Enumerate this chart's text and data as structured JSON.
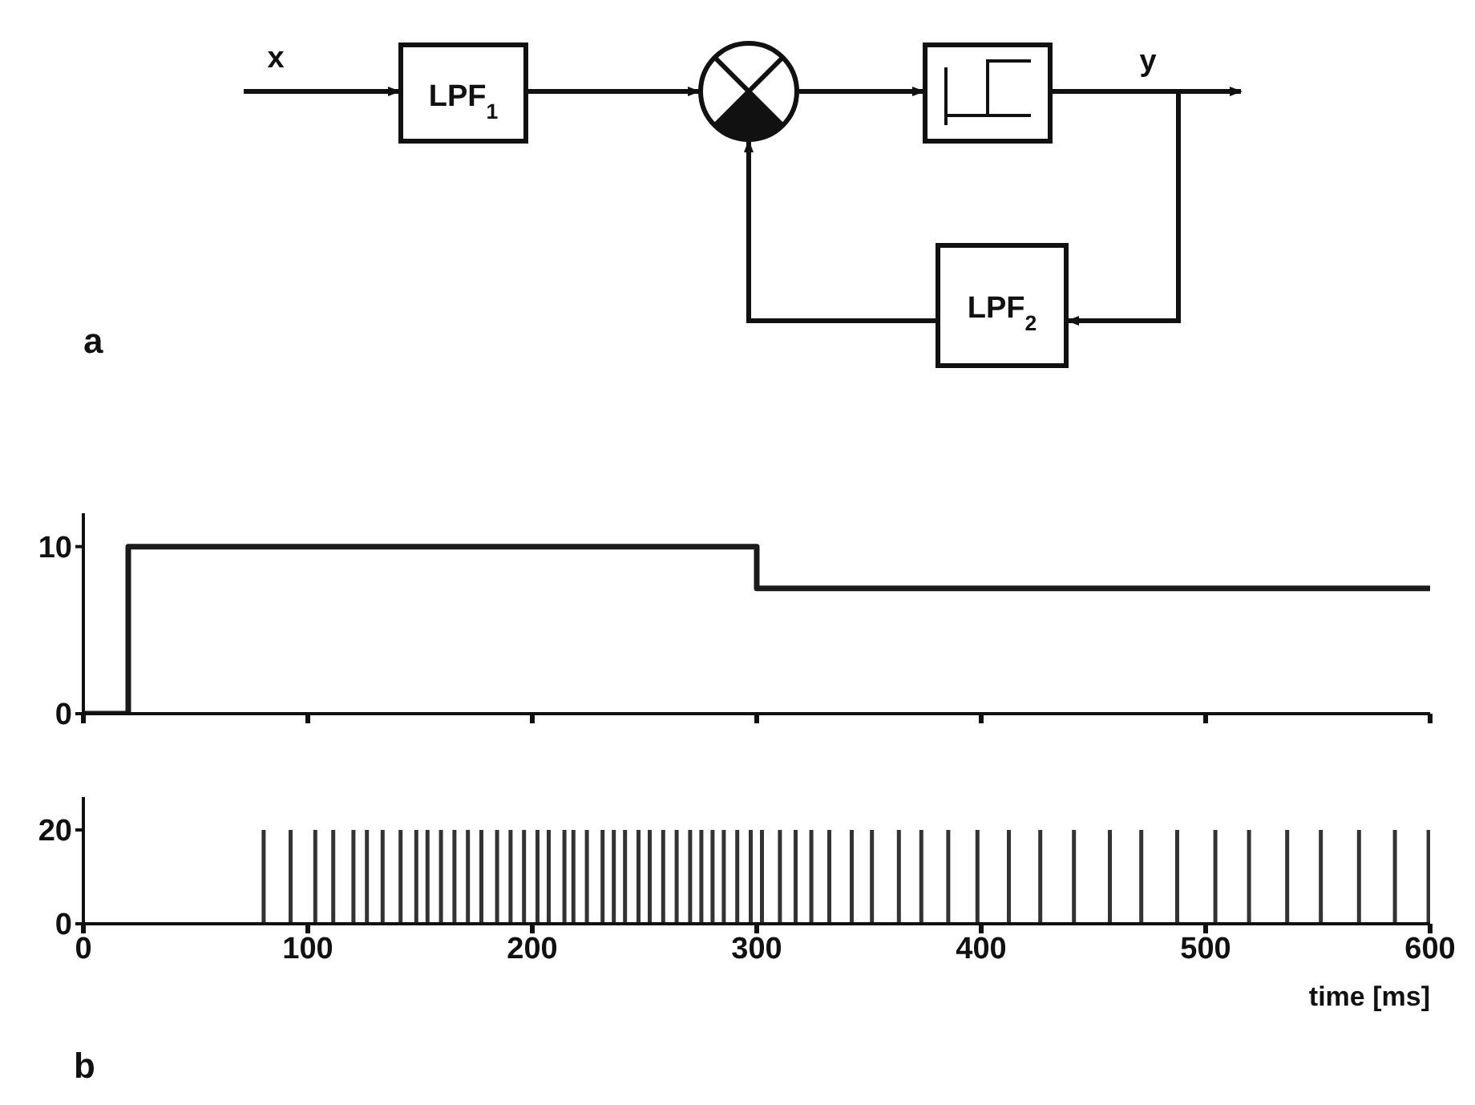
{
  "chart_data": [
    {
      "type": "other",
      "annotations": [
        "x",
        "LPF$_{1}$",
        "y",
        "LPF$_{2}$",
        "a"
      ]
    },
    {
      "type": "step",
      "x": [
        0,
        20,
        300,
        600
      ],
      "values": [
        0,
        10,
        7.5,
        7.5
      ],
      "color": "#1a1a1a",
      "xlim": [
        0,
        600
      ],
      "xticks": [
        0,
        100,
        200,
        300,
        400,
        500,
        600
      ],
      "ylim": [
        0,
        12
      ],
      "yticks": [
        0,
        10
      ],
      "tick_labels": "y"
    },
    {
      "type": "bar",
      "x": [
        80,
        92,
        103,
        111,
        120,
        126,
        133,
        141,
        148,
        153,
        159,
        165,
        171,
        177,
        184,
        190,
        196,
        202,
        207,
        214,
        218,
        224,
        231,
        236,
        241,
        247,
        252,
        258,
        264,
        270,
        275,
        280,
        285,
        291,
        297,
        302,
        310,
        317,
        324,
        332,
        342,
        351,
        363,
        373,
        385,
        398,
        412,
        426,
        441,
        457,
        471,
        487,
        504,
        519,
        536,
        551,
        568,
        584,
        599
      ],
      "values": [
        20,
        20,
        20,
        20,
        20,
        20,
        20,
        20,
        20,
        20,
        20,
        20,
        20,
        20,
        20,
        20,
        20,
        20,
        20,
        20,
        20,
        20,
        20,
        20,
        20,
        20,
        20,
        20,
        20,
        20,
        20,
        20,
        20,
        20,
        20,
        20,
        20,
        20,
        20,
        20,
        20,
        20,
        20,
        20,
        20,
        20,
        20,
        20,
        20,
        20,
        20,
        20,
        20,
        20,
        20,
        20,
        20,
        20,
        20
      ],
      "color": "#333333",
      "xlim": [
        0,
        600
      ],
      "xticks": [
        0,
        100,
        200,
        300,
        400,
        500,
        600
      ],
      "ylim": [
        0,
        27
      ],
      "yticks": [
        0,
        20
      ],
      "xlabel": "time [ms]",
      "annotations": [
        "b"
      ]
    }
  ]
}
